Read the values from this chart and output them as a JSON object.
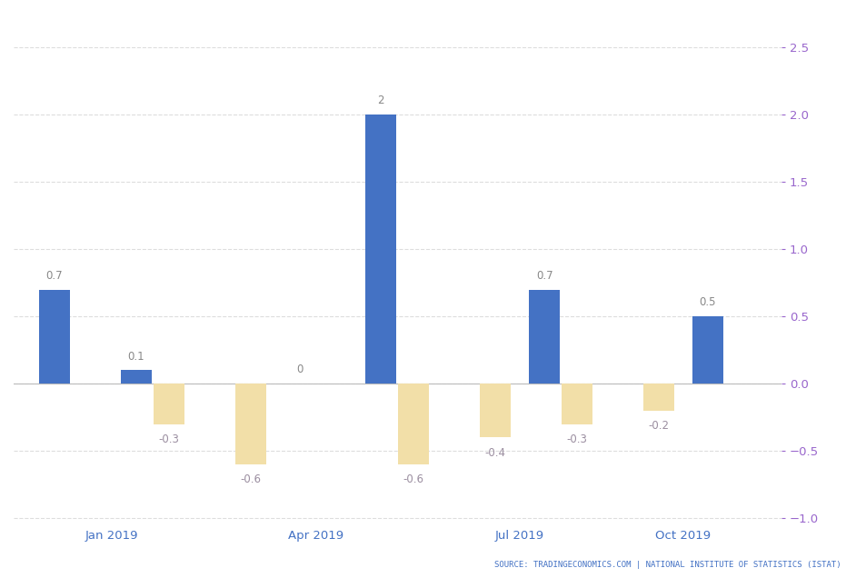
{
  "positions": [
    0,
    1,
    1,
    2,
    3,
    4,
    4,
    5,
    6,
    6,
    7,
    8
  ],
  "values": [
    0.7,
    0.1,
    -0.3,
    -0.6,
    0.0,
    2.0,
    -0.6,
    -0.4,
    0.7,
    -0.3,
    -0.2,
    0.5
  ],
  "colors": [
    "blue",
    "blue",
    "tan",
    "tan",
    "blue",
    "blue",
    "tan",
    "tan",
    "blue",
    "tan",
    "tan",
    "blue"
  ],
  "labels": [
    "0.7",
    "0.1",
    "-0.3",
    "-0.6",
    "0",
    "2",
    "-0.6",
    "-0.4",
    "0.7",
    "-0.3",
    "-0.2",
    "0.5"
  ],
  "offsets": [
    -0.2,
    -0.2,
    0.2,
    0.2,
    -0.2,
    -0.2,
    0.2,
    0.2,
    -0.2,
    0.2,
    0.2,
    -0.2
  ],
  "blue_color": "#4472C4",
  "tan_color": "#F2DFA8",
  "label_color_blue": "#888888",
  "label_color_tan": "#9B8EA0",
  "xtick_labels": [
    "Jan 2019",
    "Apr 2019",
    "Jul 2019",
    "Oct 2019"
  ],
  "xtick_positions": [
    0.5,
    3.0,
    5.5,
    7.5
  ],
  "ylim": [
    -1.05,
    2.75
  ],
  "yticks": [
    -1.0,
    -0.5,
    0.0,
    0.5,
    1.0,
    1.5,
    2.0,
    2.5
  ],
  "ytick_color_right": "#9966CC",
  "source_text": "SOURCE: TRADINGECONOMICS.COM | NATIONAL INSTITUTE OF STATISTICS (ISTAT)",
  "background_color": "#ffffff",
  "grid_color": "#dddddd",
  "bar_width": 0.38,
  "label_fontsize": 8.5,
  "tick_fontsize": 9.5,
  "source_fontsize": 6.5
}
